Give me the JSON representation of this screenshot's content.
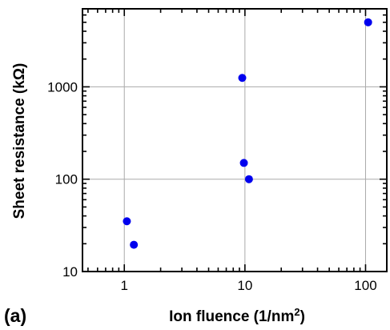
{
  "chart_data": {
    "type": "scatter",
    "panel_label": "(a)",
    "xlabel_main": "Ion fluence (1/nm",
    "xlabel_sup": "2",
    "xlabel_end": ")",
    "ylabel": "Sheet resistance (kΩ)",
    "x_scale": "log",
    "y_scale": "log",
    "xlim": [
      0.45,
      150
    ],
    "ylim": [
      10,
      7000
    ],
    "x_ticks": [
      1,
      10,
      100
    ],
    "x_tick_labels": [
      "1",
      "10",
      "100"
    ],
    "y_ticks": [
      10,
      100,
      1000
    ],
    "y_tick_labels": [
      "10",
      "100",
      "1000"
    ],
    "grid": true,
    "marker_color": "#0000ee",
    "points": [
      {
        "x": 1.05,
        "y": 35
      },
      {
        "x": 1.2,
        "y": 19.5
      },
      {
        "x": 9.5,
        "y": 1250
      },
      {
        "x": 9.8,
        "y": 150
      },
      {
        "x": 10.8,
        "y": 100
      },
      {
        "x": 105,
        "y": 5000
      }
    ]
  }
}
